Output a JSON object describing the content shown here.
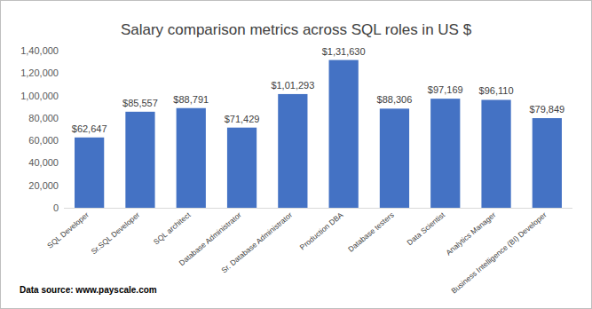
{
  "chart_data": {
    "type": "bar",
    "title": "Salary comparison metrics across SQL roles in US $",
    "annotations": [
      "Data source: www.payscale.com"
    ],
    "categories": [
      "SQL Developer",
      "Sr.SQL Developer",
      "SQL architect",
      "Database Administrator",
      "Sr. Database Administrator",
      "Production DBA",
      "Database testers",
      "Data Scientist",
      "Analytics Manager",
      "Business Intelligence (BI) Developer"
    ],
    "values": [
      62647,
      85557,
      88791,
      71429,
      101293,
      131630,
      88306,
      97169,
      96110,
      79849
    ],
    "value_labels": [
      "$62,647",
      "$85,557",
      "$88,791",
      "$71,429",
      "$1,01,293",
      "$1,31,630",
      "$88,306",
      "$97,169",
      "$96,110",
      "$79,849"
    ],
    "color": "#4472c4",
    "ylim": [
      0,
      140000
    ],
    "yticks": [
      0,
      {
        "value": 20000,
        "label": "20,000"
      },
      {
        "value": 40000,
        "label": "40,000"
      },
      {
        "value": 60000,
        "label": "60,000"
      },
      {
        "value": 80000,
        "label": "80,000"
      },
      {
        "value": 100000,
        "label": "1,00,000"
      },
      {
        "value": 120000,
        "label": "1,20,000"
      },
      {
        "value": 140000,
        "label": "1,40,000"
      }
    ],
    "grid": false,
    "data_labels": true
  }
}
